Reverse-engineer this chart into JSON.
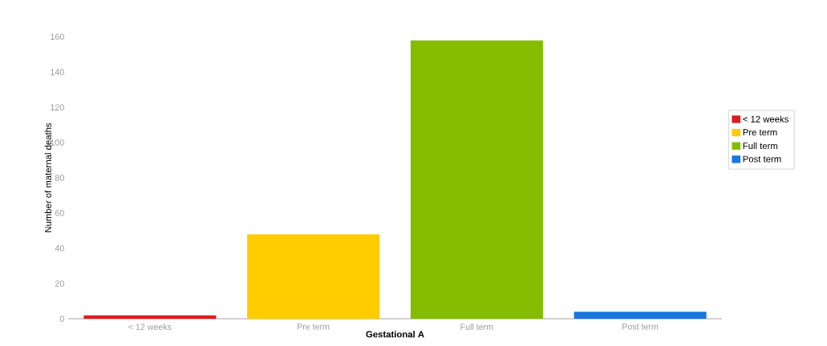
{
  "chart_data": {
    "type": "bar",
    "xlabel": "Gestational A",
    "ylabel": "Number of maternal deaths",
    "categories": [
      "< 12 weeks",
      "Pre term",
      "Full term",
      "Post term"
    ],
    "series": [
      {
        "name": "< 12 weeks",
        "color": "#dd1c1c",
        "values": [
          2,
          null,
          null,
          null
        ]
      },
      {
        "name": "Pre term",
        "color": "#ffcc00",
        "values": [
          null,
          48,
          null,
          null
        ]
      },
      {
        "name": "Full term",
        "color": "#84bc00",
        "values": [
          null,
          null,
          158,
          null
        ]
      },
      {
        "name": "Post term",
        "color": "#1a75e0",
        "values": [
          null,
          null,
          null,
          4
        ]
      }
    ],
    "ylim": [
      0,
      160
    ],
    "yticks": [
      0,
      20,
      40,
      60,
      80,
      100,
      120,
      140,
      160
    ],
    "legend": "right"
  }
}
